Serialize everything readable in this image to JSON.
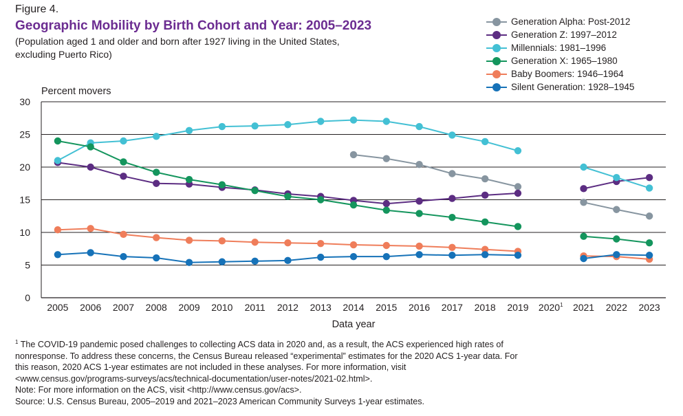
{
  "figure_label": "Figure 4.",
  "title": "Geographic Mobility by Birth Cohort and Year: 2005–2023",
  "subtitle": "(Population aged 1 and older and born after 1927 living in the United States, excluding Puerto Rico)",
  "footnotes": {
    "covid_note_lines": [
      "The COVID-19 pandemic posed challenges to collecting ACS data in 2020 and, as a result, the ACS experienced high rates of",
      "nonresponse. To address these concerns, the Census Bureau released “experimental” estimates for the 2020 ACS 1-year data. For",
      "this reason, 2020 ACS 1-year estimates are not included in these analyses. For more information, visit",
      "<www.census.gov/programs-surveys/acs/technical-documentation/user-notes/2021-02.html>."
    ],
    "note": "Note: For more information on the ACS, visit <http://www.census.gov/acs>.",
    "source": "Source: U.S. Census Bureau, 2005–2019 and 2021–2023 American Community Surveys 1-year estimates."
  },
  "chart_data": {
    "type": "line",
    "ylabel": "Percent movers",
    "xlabel": "Data year",
    "ylim": [
      0,
      30
    ],
    "yticks": [
      0,
      5,
      10,
      15,
      20,
      25,
      30
    ],
    "grid": "horizontal",
    "legend_position": "top-right",
    "categories": [
      "2005",
      "2006",
      "2007",
      "2008",
      "2009",
      "2010",
      "2011",
      "2012",
      "2013",
      "2014",
      "2015",
      "2016",
      "2017",
      "2018",
      "2019",
      "2020",
      "2021",
      "2022",
      "2023"
    ],
    "gap_category": "2020",
    "gap_marker": "1",
    "series": [
      {
        "name": "Generation Alpha: Post-2012",
        "color": "#8795a0",
        "values": [
          null,
          null,
          null,
          null,
          null,
          null,
          null,
          null,
          null,
          21.9,
          21.3,
          20.4,
          19.0,
          18.2,
          17.0,
          null,
          14.6,
          13.5,
          12.5
        ]
      },
      {
        "name": "Generation Z: 1997–2012",
        "color": "#5c2d82",
        "values": [
          20.7,
          20.0,
          18.6,
          17.5,
          17.4,
          16.9,
          16.5,
          15.9,
          15.5,
          14.9,
          14.4,
          14.8,
          15.2,
          15.7,
          16.0,
          null,
          16.7,
          17.8,
          18.4
        ]
      },
      {
        "name": "Millennials: 1981–1996",
        "color": "#43c0d4",
        "values": [
          21.0,
          23.7,
          24.0,
          24.7,
          25.6,
          26.2,
          26.3,
          26.5,
          27.0,
          27.2,
          27.0,
          26.2,
          24.9,
          23.9,
          22.5,
          null,
          20.0,
          18.4,
          16.8
        ]
      },
      {
        "name": "Generation X: 1965–1980",
        "color": "#14955d",
        "values": [
          24.0,
          23.1,
          20.8,
          19.2,
          18.1,
          17.3,
          16.4,
          15.5,
          15.0,
          14.2,
          13.4,
          12.9,
          12.3,
          11.6,
          10.9,
          null,
          9.4,
          9.0,
          8.4
        ]
      },
      {
        "name": "Baby Boomers: 1946–1964",
        "color": "#ef7d5a",
        "values": [
          10.4,
          10.6,
          9.7,
          9.2,
          8.8,
          8.7,
          8.5,
          8.4,
          8.3,
          8.1,
          8.0,
          7.9,
          7.7,
          7.4,
          7.1,
          null,
          6.4,
          6.3,
          5.9
        ]
      },
      {
        "name": "Silent Generation: 1928–1945",
        "color": "#1672b8",
        "values": [
          6.6,
          6.9,
          6.3,
          6.1,
          5.4,
          5.5,
          5.6,
          5.7,
          6.2,
          6.3,
          6.3,
          6.6,
          6.5,
          6.6,
          6.5,
          null,
          6.0,
          6.6,
          6.5
        ]
      }
    ]
  }
}
